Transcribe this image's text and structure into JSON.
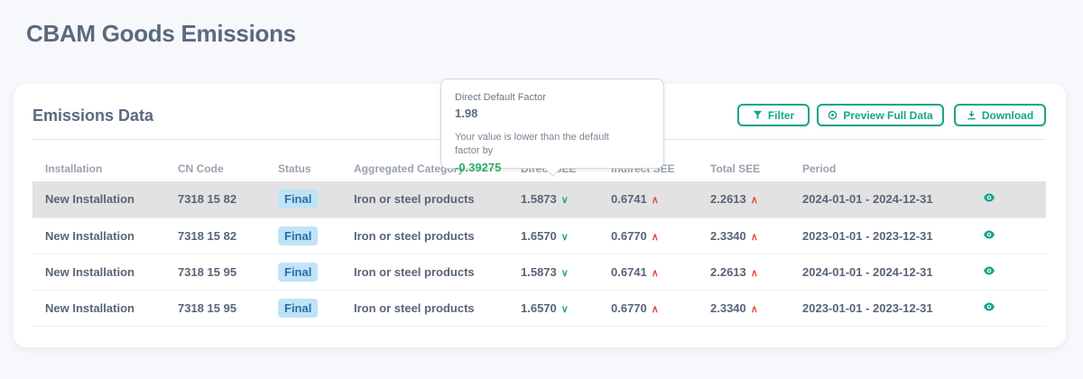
{
  "page_title": "CBAM Goods Emissions",
  "card": {
    "title": "Emissions Data",
    "buttons": {
      "filter": "Filter",
      "preview": "Preview Full Data",
      "download": "Download"
    }
  },
  "accent": "#17a589",
  "table": {
    "headers": [
      "Installation",
      "CN Code",
      "Status",
      "Aggregated Category",
      "Direct SEE",
      "Indirect SEE",
      "Total SEE",
      "Period"
    ],
    "rows": [
      {
        "installation": "New Installation",
        "cn": "7318 15 82",
        "status": "Final",
        "category": "Iron or steel products",
        "direct": "1.5873",
        "direct_trend": "down",
        "indirect": "0.6741",
        "indirect_trend": "up",
        "total": "2.2613",
        "total_trend": "up",
        "period": "2024-01-01 - 2024-12-31"
      },
      {
        "installation": "New Installation",
        "cn": "7318 15 82",
        "status": "Final",
        "category": "Iron or steel products",
        "direct": "1.6570",
        "direct_trend": "down",
        "indirect": "0.6770",
        "indirect_trend": "up",
        "total": "2.3340",
        "total_trend": "up",
        "period": "2023-01-01 - 2023-12-31"
      },
      {
        "installation": "New Installation",
        "cn": "7318 15 95",
        "status": "Final",
        "category": "Iron or steel products",
        "direct": "1.5873",
        "direct_trend": "down",
        "indirect": "0.6741",
        "indirect_trend": "up",
        "total": "2.2613",
        "total_trend": "up",
        "period": "2024-01-01 - 2024-12-31"
      },
      {
        "installation": "New Installation",
        "cn": "7318 15 95",
        "status": "Final",
        "category": "Iron or steel products",
        "direct": "1.6570",
        "direct_trend": "down",
        "indirect": "0.6770",
        "indirect_trend": "up",
        "total": "2.3340",
        "total_trend": "up",
        "period": "2023-01-01 - 2023-12-31"
      }
    ]
  },
  "tooltip": {
    "label": "Direct Default Factor",
    "value": "1.98",
    "message": "Your value is lower than the default factor by",
    "difference": "-0.39275"
  }
}
